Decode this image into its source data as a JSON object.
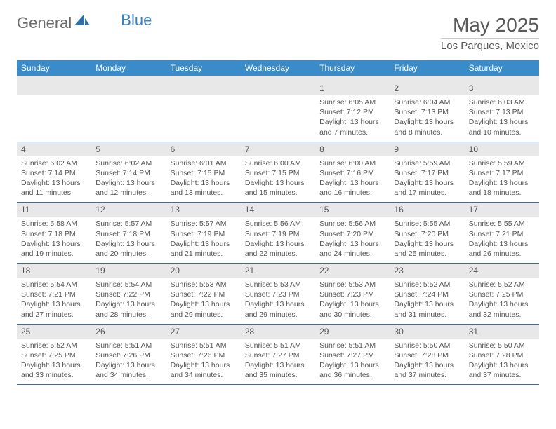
{
  "logo": {
    "general": "General",
    "blue": "Blue"
  },
  "title": "May 2025",
  "location": "Los Parques, Mexico",
  "colors": {
    "header_bg": "#3b8bc8",
    "header_text": "#ffffff",
    "daynum_bg": "#e8e8e8",
    "text": "#555555",
    "rule": "#3b6d9a",
    "logo_gray": "#6b6b6b",
    "logo_blue": "#3a7fbf"
  },
  "day_headers": [
    "Sunday",
    "Monday",
    "Tuesday",
    "Wednesday",
    "Thursday",
    "Friday",
    "Saturday"
  ],
  "weeks": [
    [
      null,
      null,
      null,
      null,
      {
        "n": "1",
        "sr": "6:05 AM",
        "ss": "7:12 PM",
        "dl": "13 hours and 7 minutes."
      },
      {
        "n": "2",
        "sr": "6:04 AM",
        "ss": "7:13 PM",
        "dl": "13 hours and 8 minutes."
      },
      {
        "n": "3",
        "sr": "6:03 AM",
        "ss": "7:13 PM",
        "dl": "13 hours and 10 minutes."
      }
    ],
    [
      {
        "n": "4",
        "sr": "6:02 AM",
        "ss": "7:14 PM",
        "dl": "13 hours and 11 minutes."
      },
      {
        "n": "5",
        "sr": "6:02 AM",
        "ss": "7:14 PM",
        "dl": "13 hours and 12 minutes."
      },
      {
        "n": "6",
        "sr": "6:01 AM",
        "ss": "7:15 PM",
        "dl": "13 hours and 13 minutes."
      },
      {
        "n": "7",
        "sr": "6:00 AM",
        "ss": "7:15 PM",
        "dl": "13 hours and 15 minutes."
      },
      {
        "n": "8",
        "sr": "6:00 AM",
        "ss": "7:16 PM",
        "dl": "13 hours and 16 minutes."
      },
      {
        "n": "9",
        "sr": "5:59 AM",
        "ss": "7:17 PM",
        "dl": "13 hours and 17 minutes."
      },
      {
        "n": "10",
        "sr": "5:59 AM",
        "ss": "7:17 PM",
        "dl": "13 hours and 18 minutes."
      }
    ],
    [
      {
        "n": "11",
        "sr": "5:58 AM",
        "ss": "7:18 PM",
        "dl": "13 hours and 19 minutes."
      },
      {
        "n": "12",
        "sr": "5:57 AM",
        "ss": "7:18 PM",
        "dl": "13 hours and 20 minutes."
      },
      {
        "n": "13",
        "sr": "5:57 AM",
        "ss": "7:19 PM",
        "dl": "13 hours and 21 minutes."
      },
      {
        "n": "14",
        "sr": "5:56 AM",
        "ss": "7:19 PM",
        "dl": "13 hours and 22 minutes."
      },
      {
        "n": "15",
        "sr": "5:56 AM",
        "ss": "7:20 PM",
        "dl": "13 hours and 24 minutes."
      },
      {
        "n": "16",
        "sr": "5:55 AM",
        "ss": "7:20 PM",
        "dl": "13 hours and 25 minutes."
      },
      {
        "n": "17",
        "sr": "5:55 AM",
        "ss": "7:21 PM",
        "dl": "13 hours and 26 minutes."
      }
    ],
    [
      {
        "n": "18",
        "sr": "5:54 AM",
        "ss": "7:21 PM",
        "dl": "13 hours and 27 minutes."
      },
      {
        "n": "19",
        "sr": "5:54 AM",
        "ss": "7:22 PM",
        "dl": "13 hours and 28 minutes."
      },
      {
        "n": "20",
        "sr": "5:53 AM",
        "ss": "7:22 PM",
        "dl": "13 hours and 29 minutes."
      },
      {
        "n": "21",
        "sr": "5:53 AM",
        "ss": "7:23 PM",
        "dl": "13 hours and 29 minutes."
      },
      {
        "n": "22",
        "sr": "5:53 AM",
        "ss": "7:23 PM",
        "dl": "13 hours and 30 minutes."
      },
      {
        "n": "23",
        "sr": "5:52 AM",
        "ss": "7:24 PM",
        "dl": "13 hours and 31 minutes."
      },
      {
        "n": "24",
        "sr": "5:52 AM",
        "ss": "7:25 PM",
        "dl": "13 hours and 32 minutes."
      }
    ],
    [
      {
        "n": "25",
        "sr": "5:52 AM",
        "ss": "7:25 PM",
        "dl": "13 hours and 33 minutes."
      },
      {
        "n": "26",
        "sr": "5:51 AM",
        "ss": "7:26 PM",
        "dl": "13 hours and 34 minutes."
      },
      {
        "n": "27",
        "sr": "5:51 AM",
        "ss": "7:26 PM",
        "dl": "13 hours and 34 minutes."
      },
      {
        "n": "28",
        "sr": "5:51 AM",
        "ss": "7:27 PM",
        "dl": "13 hours and 35 minutes."
      },
      {
        "n": "29",
        "sr": "5:51 AM",
        "ss": "7:27 PM",
        "dl": "13 hours and 36 minutes."
      },
      {
        "n": "30",
        "sr": "5:50 AM",
        "ss": "7:28 PM",
        "dl": "13 hours and 37 minutes."
      },
      {
        "n": "31",
        "sr": "5:50 AM",
        "ss": "7:28 PM",
        "dl": "13 hours and 37 minutes."
      }
    ]
  ],
  "labels": {
    "sunrise": "Sunrise: ",
    "sunset": "Sunset: ",
    "daylight": "Daylight: "
  }
}
